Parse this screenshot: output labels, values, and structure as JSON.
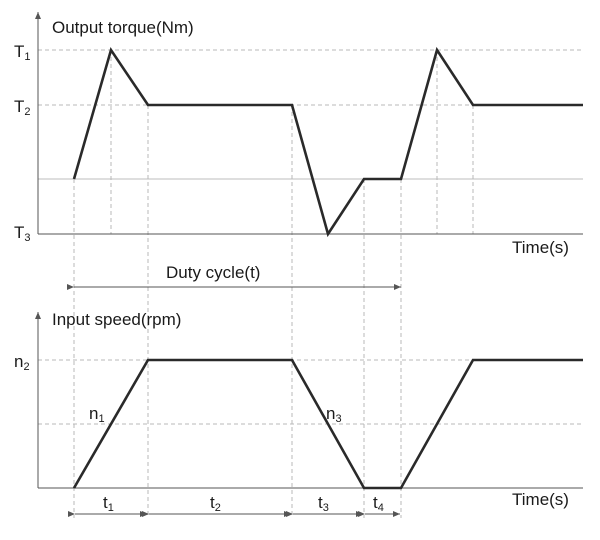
{
  "top_chart": {
    "title": "Output torque(Nm)",
    "x_axis_label": "Time(s)",
    "y_ticks": [
      {
        "base": "T",
        "sub": "1"
      },
      {
        "base": "T",
        "sub": "2"
      },
      {
        "base": "T",
        "sub": "3"
      }
    ]
  },
  "duty_cycle_label": "Duty cycle(t)",
  "bottom_chart": {
    "title": "Input speed(rpm)",
    "x_axis_label": "Time(s)",
    "y_tick": {
      "base": "n",
      "sub": "2"
    },
    "segment_labels": [
      {
        "base": "n",
        "sub": "1"
      },
      {
        "base": "n",
        "sub": "3"
      }
    ]
  },
  "interval_labels": [
    {
      "base": "t",
      "sub": "1"
    },
    {
      "base": "t",
      "sub": "2"
    },
    {
      "base": "t",
      "sub": "3"
    },
    {
      "base": "t",
      "sub": "4"
    }
  ]
}
